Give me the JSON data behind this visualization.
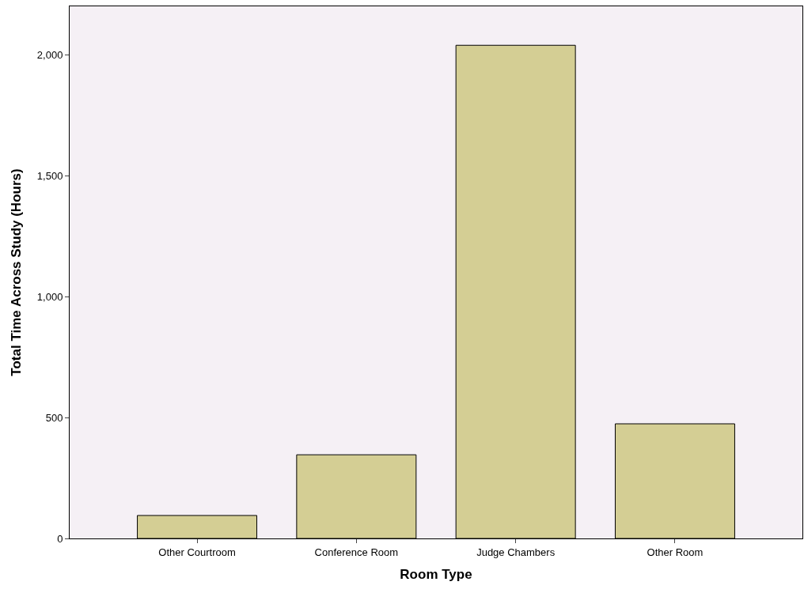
{
  "chart_data": {
    "type": "bar",
    "xlabel": "Room Type",
    "ylabel": "Total Time Across Study (Hours)",
    "categories": [
      "Other Courtroom",
      "Conference Room",
      "Judge Chambers",
      "Other Room"
    ],
    "values": [
      95,
      346,
      2039,
      474
    ],
    "color": "#d4ce94",
    "ylim": [
      0,
      2200
    ],
    "yticks": [
      {
        "value": 0,
        "label": "0"
      },
      {
        "value": 500,
        "label": "500"
      },
      {
        "value": 1000,
        "label": "1,000"
      },
      {
        "value": 1500,
        "label": "1,500"
      },
      {
        "value": 2000,
        "label": "2,000"
      }
    ],
    "grid": false,
    "legend": false
  }
}
